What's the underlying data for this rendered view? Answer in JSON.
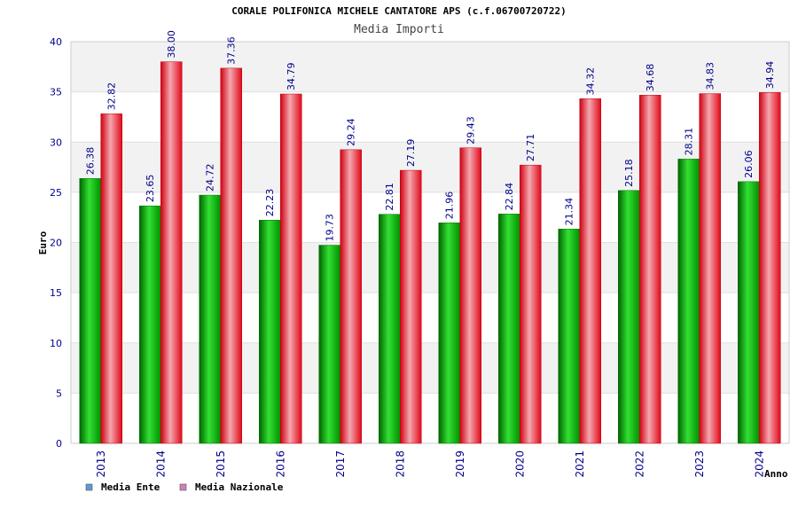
{
  "chart_data": {
    "type": "bar",
    "title": "CORALE POLIFONICA MICHELE CANTATORE APS (c.f.06700720722)",
    "subtitle": "Media Importi",
    "xlabel": "Anno",
    "ylabel": "Euro",
    "ylim": [
      0,
      40
    ],
    "yticks": [
      "0",
      "5",
      "10",
      "15",
      "20",
      "25",
      "30",
      "35",
      "40"
    ],
    "grid": true,
    "legend_position": "bottom-left",
    "categories": [
      "2013",
      "2014",
      "2015",
      "2016",
      "2017",
      "2018",
      "2019",
      "2020",
      "2021",
      "2022",
      "2023",
      "2024"
    ],
    "series": [
      {
        "name": "Media Ente",
        "color": "#00a000",
        "legend_color": "#5b9bd5",
        "values": [
          26.38,
          23.65,
          24.72,
          22.23,
          19.73,
          22.81,
          21.96,
          22.84,
          21.34,
          25.18,
          28.31,
          26.06
        ],
        "labels": [
          "26.38",
          "23.65",
          "24.72",
          "22.23",
          "19.73",
          "22.81",
          "21.96",
          "22.84",
          "21.34",
          "25.18",
          "28.31",
          "26.06"
        ]
      },
      {
        "name": "Media Nazionale",
        "color": "#ee1c25",
        "legend_color": "#d080b8",
        "values": [
          32.82,
          38.0,
          37.36,
          34.79,
          29.24,
          27.19,
          29.43,
          27.71,
          34.32,
          34.68,
          34.83,
          34.94
        ],
        "labels": [
          "32.82",
          "38.00",
          "37.36",
          "34.79",
          "29.24",
          "27.19",
          "29.43",
          "27.71",
          "34.32",
          "34.68",
          "34.83",
          "34.94"
        ]
      }
    ]
  }
}
